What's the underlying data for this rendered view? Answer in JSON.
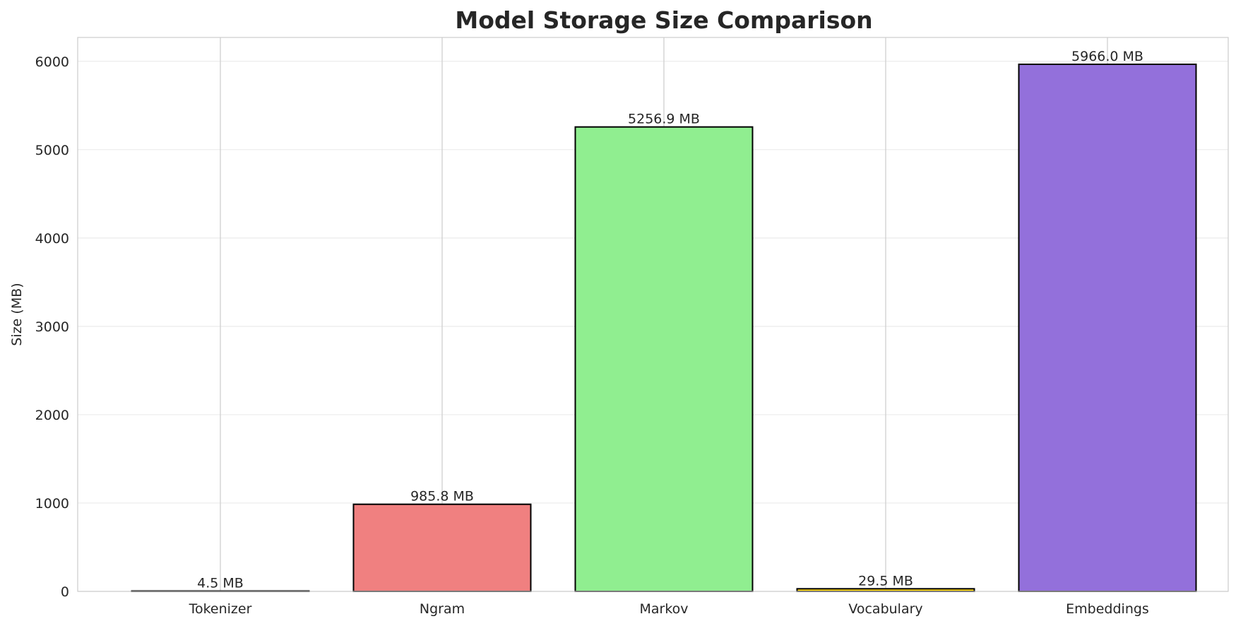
{
  "chart_data": {
    "type": "bar",
    "title": "Model Storage Size Comparison",
    "xlabel": "",
    "ylabel": "Size (MB)",
    "ylim": [
      0,
      6270
    ],
    "yticks": [
      0,
      1000,
      2000,
      3000,
      4000,
      5000,
      6000
    ],
    "grid": true,
    "categories": [
      "Tokenizer",
      "Ngram",
      "Markov",
      "Vocabulary",
      "Embeddings"
    ],
    "values": [
      4.5,
      985.8,
      5256.9,
      29.5,
      5966.0
    ],
    "data_labels": [
      "4.5 MB",
      "985.8 MB",
      "5256.9 MB",
      "29.5 MB",
      "5966.0 MB"
    ],
    "colors": [
      "#87ceeb",
      "#f08080",
      "#90ee90",
      "#ffd700",
      "#9370db"
    ],
    "bar_edge_color": "#000000"
  }
}
